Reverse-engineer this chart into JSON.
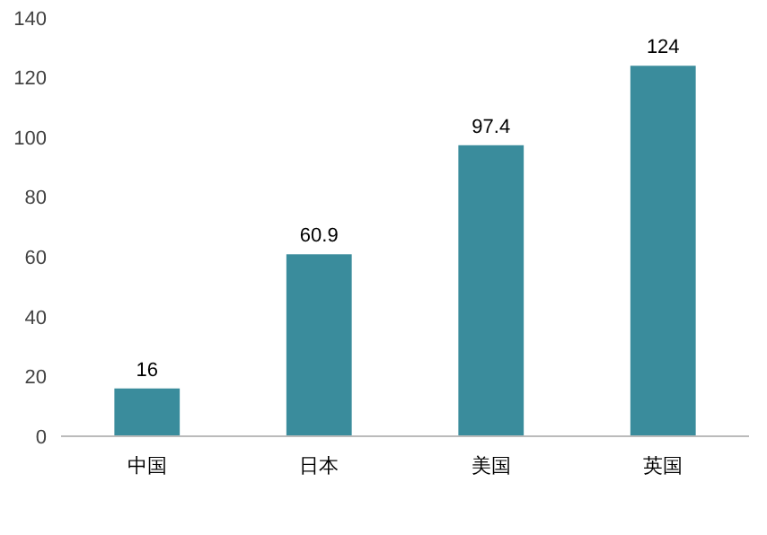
{
  "chart_data": {
    "type": "bar",
    "categories": [
      "中国",
      "日本",
      "美国",
      "英国"
    ],
    "values": [
      16,
      60.9,
      97.4,
      124
    ],
    "color": "#3a8c9c",
    "ylim": [
      0,
      140
    ],
    "yticks": [
      0,
      20,
      40,
      60,
      80,
      100,
      120,
      140
    ],
    "grid": false,
    "data_labels": true
  }
}
